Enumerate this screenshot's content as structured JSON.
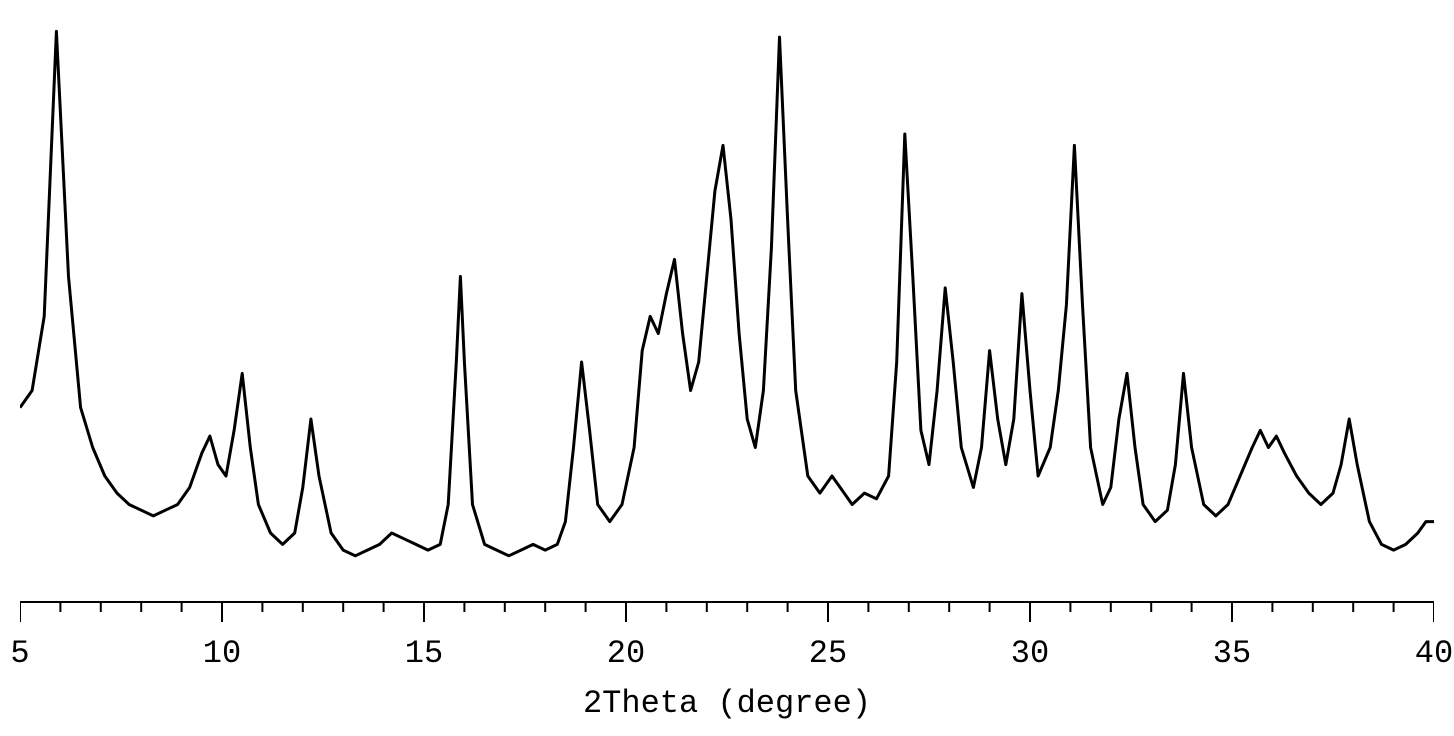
{
  "chart": {
    "type": "line",
    "xlabel": "2Theta (degree)",
    "xlim": [
      5,
      40
    ],
    "xtick_step": 5,
    "xtick_labels": [
      "5",
      "10",
      "15",
      "20",
      "25",
      "30",
      "35",
      "40"
    ],
    "line_color": "#000000",
    "line_width": 3,
    "background_color": "#ffffff",
    "text_color": "#000000",
    "label_fontsize": 32,
    "tick_fontsize": 32,
    "font_family": "Courier New",
    "ylim_relative": [
      0,
      100
    ],
    "data_points": [
      {
        "x": 5.0,
        "y": 32
      },
      {
        "x": 5.3,
        "y": 35
      },
      {
        "x": 5.6,
        "y": 48
      },
      {
        "x": 5.9,
        "y": 98
      },
      {
        "x": 6.2,
        "y": 55
      },
      {
        "x": 6.5,
        "y": 32
      },
      {
        "x": 6.8,
        "y": 25
      },
      {
        "x": 7.1,
        "y": 20
      },
      {
        "x": 7.4,
        "y": 17
      },
      {
        "x": 7.7,
        "y": 15
      },
      {
        "x": 8.0,
        "y": 14
      },
      {
        "x": 8.3,
        "y": 13
      },
      {
        "x": 8.6,
        "y": 14
      },
      {
        "x": 8.9,
        "y": 15
      },
      {
        "x": 9.2,
        "y": 18
      },
      {
        "x": 9.5,
        "y": 24
      },
      {
        "x": 9.7,
        "y": 27
      },
      {
        "x": 9.9,
        "y": 22
      },
      {
        "x": 10.1,
        "y": 20
      },
      {
        "x": 10.3,
        "y": 28
      },
      {
        "x": 10.5,
        "y": 38
      },
      {
        "x": 10.7,
        "y": 25
      },
      {
        "x": 10.9,
        "y": 15
      },
      {
        "x": 11.2,
        "y": 10
      },
      {
        "x": 11.5,
        "y": 8
      },
      {
        "x": 11.8,
        "y": 10
      },
      {
        "x": 12.0,
        "y": 18
      },
      {
        "x": 12.2,
        "y": 30
      },
      {
        "x": 12.4,
        "y": 20
      },
      {
        "x": 12.7,
        "y": 10
      },
      {
        "x": 13.0,
        "y": 7
      },
      {
        "x": 13.3,
        "y": 6
      },
      {
        "x": 13.6,
        "y": 7
      },
      {
        "x": 13.9,
        "y": 8
      },
      {
        "x": 14.2,
        "y": 10
      },
      {
        "x": 14.5,
        "y": 9
      },
      {
        "x": 14.8,
        "y": 8
      },
      {
        "x": 15.1,
        "y": 7
      },
      {
        "x": 15.4,
        "y": 8
      },
      {
        "x": 15.6,
        "y": 15
      },
      {
        "x": 15.8,
        "y": 40
      },
      {
        "x": 15.9,
        "y": 55
      },
      {
        "x": 16.0,
        "y": 40
      },
      {
        "x": 16.2,
        "y": 15
      },
      {
        "x": 16.5,
        "y": 8
      },
      {
        "x": 16.8,
        "y": 7
      },
      {
        "x": 17.1,
        "y": 6
      },
      {
        "x": 17.4,
        "y": 7
      },
      {
        "x": 17.7,
        "y": 8
      },
      {
        "x": 18.0,
        "y": 7
      },
      {
        "x": 18.3,
        "y": 8
      },
      {
        "x": 18.5,
        "y": 12
      },
      {
        "x": 18.7,
        "y": 25
      },
      {
        "x": 18.9,
        "y": 40
      },
      {
        "x": 19.1,
        "y": 28
      },
      {
        "x": 19.3,
        "y": 15
      },
      {
        "x": 19.6,
        "y": 12
      },
      {
        "x": 19.9,
        "y": 15
      },
      {
        "x": 20.2,
        "y": 25
      },
      {
        "x": 20.4,
        "y": 42
      },
      {
        "x": 20.6,
        "y": 48
      },
      {
        "x": 20.8,
        "y": 45
      },
      {
        "x": 21.0,
        "y": 52
      },
      {
        "x": 21.2,
        "y": 58
      },
      {
        "x": 21.4,
        "y": 45
      },
      {
        "x": 21.6,
        "y": 35
      },
      {
        "x": 21.8,
        "y": 40
      },
      {
        "x": 22.0,
        "y": 55
      },
      {
        "x": 22.2,
        "y": 70
      },
      {
        "x": 22.4,
        "y": 78
      },
      {
        "x": 22.6,
        "y": 65
      },
      {
        "x": 22.8,
        "y": 45
      },
      {
        "x": 23.0,
        "y": 30
      },
      {
        "x": 23.2,
        "y": 25
      },
      {
        "x": 23.4,
        "y": 35
      },
      {
        "x": 23.6,
        "y": 60
      },
      {
        "x": 23.8,
        "y": 97
      },
      {
        "x": 24.0,
        "y": 65
      },
      {
        "x": 24.2,
        "y": 35
      },
      {
        "x": 24.5,
        "y": 20
      },
      {
        "x": 24.8,
        "y": 17
      },
      {
        "x": 25.1,
        "y": 20
      },
      {
        "x": 25.3,
        "y": 18
      },
      {
        "x": 25.6,
        "y": 15
      },
      {
        "x": 25.9,
        "y": 17
      },
      {
        "x": 26.2,
        "y": 16
      },
      {
        "x": 26.5,
        "y": 20
      },
      {
        "x": 26.7,
        "y": 40
      },
      {
        "x": 26.9,
        "y": 80
      },
      {
        "x": 27.1,
        "y": 55
      },
      {
        "x": 27.3,
        "y": 28
      },
      {
        "x": 27.5,
        "y": 22
      },
      {
        "x": 27.7,
        "y": 35
      },
      {
        "x": 27.9,
        "y": 53
      },
      {
        "x": 28.1,
        "y": 40
      },
      {
        "x": 28.3,
        "y": 25
      },
      {
        "x": 28.6,
        "y": 18
      },
      {
        "x": 28.8,
        "y": 25
      },
      {
        "x": 29.0,
        "y": 42
      },
      {
        "x": 29.2,
        "y": 30
      },
      {
        "x": 29.4,
        "y": 22
      },
      {
        "x": 29.6,
        "y": 30
      },
      {
        "x": 29.8,
        "y": 52
      },
      {
        "x": 30.0,
        "y": 35
      },
      {
        "x": 30.2,
        "y": 20
      },
      {
        "x": 30.5,
        "y": 25
      },
      {
        "x": 30.7,
        "y": 35
      },
      {
        "x": 30.9,
        "y": 50
      },
      {
        "x": 31.1,
        "y": 78
      },
      {
        "x": 31.3,
        "y": 50
      },
      {
        "x": 31.5,
        "y": 25
      },
      {
        "x": 31.8,
        "y": 15
      },
      {
        "x": 32.0,
        "y": 18
      },
      {
        "x": 32.2,
        "y": 30
      },
      {
        "x": 32.4,
        "y": 38
      },
      {
        "x": 32.6,
        "y": 25
      },
      {
        "x": 32.8,
        "y": 15
      },
      {
        "x": 33.1,
        "y": 12
      },
      {
        "x": 33.4,
        "y": 14
      },
      {
        "x": 33.6,
        "y": 22
      },
      {
        "x": 33.8,
        "y": 38
      },
      {
        "x": 34.0,
        "y": 25
      },
      {
        "x": 34.3,
        "y": 15
      },
      {
        "x": 34.6,
        "y": 13
      },
      {
        "x": 34.9,
        "y": 15
      },
      {
        "x": 35.2,
        "y": 20
      },
      {
        "x": 35.5,
        "y": 25
      },
      {
        "x": 35.7,
        "y": 28
      },
      {
        "x": 35.9,
        "y": 25
      },
      {
        "x": 36.1,
        "y": 27
      },
      {
        "x": 36.3,
        "y": 24
      },
      {
        "x": 36.6,
        "y": 20
      },
      {
        "x": 36.9,
        "y": 17
      },
      {
        "x": 37.2,
        "y": 15
      },
      {
        "x": 37.5,
        "y": 17
      },
      {
        "x": 37.7,
        "y": 22
      },
      {
        "x": 37.9,
        "y": 30
      },
      {
        "x": 38.1,
        "y": 22
      },
      {
        "x": 38.4,
        "y": 12
      },
      {
        "x": 38.7,
        "y": 8
      },
      {
        "x": 39.0,
        "y": 7
      },
      {
        "x": 39.3,
        "y": 8
      },
      {
        "x": 39.6,
        "y": 10
      },
      {
        "x": 39.8,
        "y": 12
      },
      {
        "x": 40.0,
        "y": 12
      }
    ]
  }
}
